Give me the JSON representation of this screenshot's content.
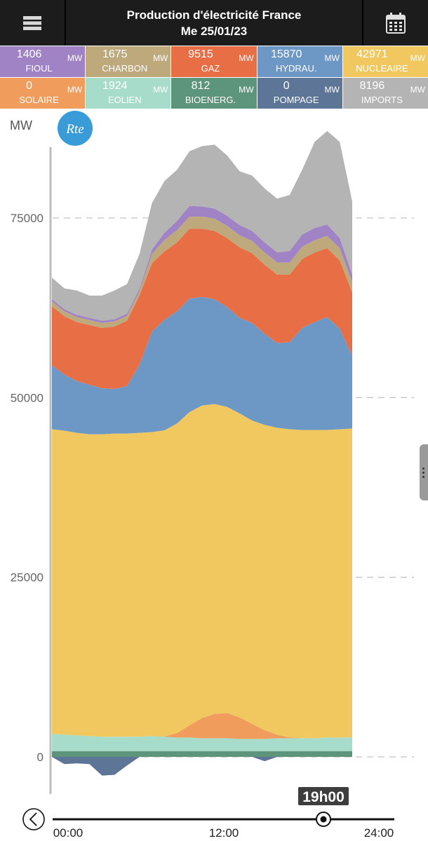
{
  "header": {
    "title": "Production d'électricité France",
    "date": "Me 25/01/23",
    "menu_icon": "hamburger-menu-icon",
    "calendar_icon": "calendar-icon"
  },
  "tiles": [
    {
      "value": "1406",
      "unit": "MW",
      "label": "FIOUL",
      "color": "#9f83c4"
    },
    {
      "value": "1675",
      "unit": "MW",
      "label": "CHARBON",
      "color": "#bda97b"
    },
    {
      "value": "9515",
      "unit": "MW",
      "label": "GAZ",
      "color": "#e86e45"
    },
    {
      "value": "15870",
      "unit": "MW",
      "label": "HYDRAU.",
      "color": "#6d98c6"
    },
    {
      "value": "42971",
      "unit": "MW",
      "label": "NUCLEAIRE",
      "color": "#f0c85f"
    },
    {
      "value": "0",
      "unit": "MW",
      "label": "SOLAIRE",
      "color": "#ef9c5d"
    },
    {
      "value": "1924",
      "unit": "MW",
      "label": "EOLIEN",
      "color": "#a7dccb"
    },
    {
      "value": "812",
      "unit": "MW",
      "label": "BIOENERG.",
      "color": "#5c947c"
    },
    {
      "value": "0",
      "unit": "MW",
      "label": "POMPAGE",
      "color": "#5d7596"
    },
    {
      "value": "8196",
      "unit": "MW",
      "label": "IMPORTS",
      "color": "#b4b4b4"
    }
  ],
  "logo_text": "Rte",
  "cursor_time": "19h00",
  "nav": {
    "back_icon": "chevron-left-icon"
  },
  "chart_data": {
    "type": "area",
    "ylabel": "MW",
    "ylim": [
      -3000,
      85000
    ],
    "yticks": [
      0,
      25000,
      50000,
      75000
    ],
    "grid": true,
    "x": [
      0,
      1,
      2,
      3,
      4,
      5,
      6,
      7,
      8,
      9,
      10,
      11,
      12,
      13,
      14,
      15,
      16,
      17,
      18,
      19,
      20,
      21,
      22,
      23,
      24
    ],
    "x_ticks": [
      "00:00",
      "12:00",
      "24:00"
    ],
    "cursor_hour": 19,
    "series": [
      {
        "name": "POMPAGE",
        "color": "#5d7596",
        "values": [
          0,
          -1000,
          -900,
          -1000,
          -2600,
          -2500,
          -1200,
          0,
          0,
          0,
          0,
          0,
          0,
          0,
          0,
          0,
          0,
          -600,
          0,
          0,
          0,
          0,
          0,
          0,
          0
        ]
      },
      {
        "name": "BIOENERG.",
        "color": "#5c947c",
        "values": [
          800,
          800,
          800,
          800,
          800,
          800,
          800,
          800,
          800,
          800,
          800,
          800,
          800,
          800,
          800,
          800,
          800,
          800,
          800,
          800,
          800,
          800,
          800,
          800,
          812
        ]
      },
      {
        "name": "EOLIEN",
        "color": "#a7dccb",
        "values": [
          2400,
          2300,
          2200,
          2100,
          2000,
          2000,
          2000,
          2000,
          2100,
          2000,
          1900,
          1900,
          1800,
          1800,
          1800,
          1700,
          1700,
          1700,
          1800,
          1800,
          1800,
          1800,
          1900,
          1900,
          1924
        ]
      },
      {
        "name": "SOLAIRE",
        "color": "#ef9c5d",
        "values": [
          0,
          0,
          0,
          0,
          0,
          0,
          0,
          0,
          0,
          50,
          600,
          1700,
          2800,
          3400,
          3500,
          3000,
          2100,
          1200,
          500,
          100,
          0,
          0,
          0,
          0,
          0
        ]
      },
      {
        "name": "NUCLEAIRE",
        "color": "#f0c85f",
        "values": [
          42400,
          42300,
          42100,
          42000,
          42100,
          42200,
          42200,
          42300,
          42300,
          42600,
          43100,
          43600,
          43500,
          43100,
          42600,
          42300,
          42200,
          42500,
          42700,
          42900,
          42900,
          42900,
          42800,
          42900,
          42971
        ]
      },
      {
        "name": "HYDRAU.",
        "color": "#6d98c6",
        "values": [
          8900,
          7800,
          7200,
          6900,
          6400,
          6200,
          6600,
          9500,
          14000,
          15400,
          15600,
          15800,
          15100,
          14600,
          13900,
          13300,
          13600,
          12700,
          11800,
          12100,
          14200,
          15000,
          15700,
          14000,
          10100
        ]
      },
      {
        "name": "GAZ",
        "color": "#e86e45",
        "values": [
          8200,
          8100,
          8200,
          8300,
          8400,
          8700,
          9100,
          9600,
          9500,
          9500,
          9600,
          9700,
          9500,
          9500,
          9600,
          9800,
          9700,
          9600,
          9500,
          9400,
          9600,
          9700,
          9600,
          9500,
          8800
        ]
      },
      {
        "name": "CHARBON",
        "color": "#bda97b",
        "values": [
          700,
          700,
          700,
          700,
          700,
          700,
          700,
          700,
          1300,
          1600,
          1700,
          1700,
          1700,
          1700,
          1700,
          1700,
          1700,
          1700,
          1700,
          1700,
          1700,
          1700,
          1700,
          1700,
          1500
        ]
      },
      {
        "name": "FIOUL",
        "color": "#9f83c4",
        "values": [
          300,
          300,
          300,
          300,
          300,
          300,
          300,
          300,
          600,
          1000,
          1300,
          1500,
          1400,
          1400,
          1400,
          1400,
          1400,
          1400,
          1400,
          1600,
          1700,
          1700,
          1600,
          1400,
          1000
        ]
      },
      {
        "name": "IMPORTS",
        "color": "#b4b4b4",
        "values": [
          3000,
          2900,
          3400,
          3100,
          3500,
          4000,
          4100,
          4800,
          6500,
          7200,
          7100,
          7600,
          8400,
          8900,
          8400,
          7500,
          7700,
          7500,
          7500,
          7800,
          9000,
          12000,
          13000,
          13400,
          10200
        ]
      }
    ]
  }
}
